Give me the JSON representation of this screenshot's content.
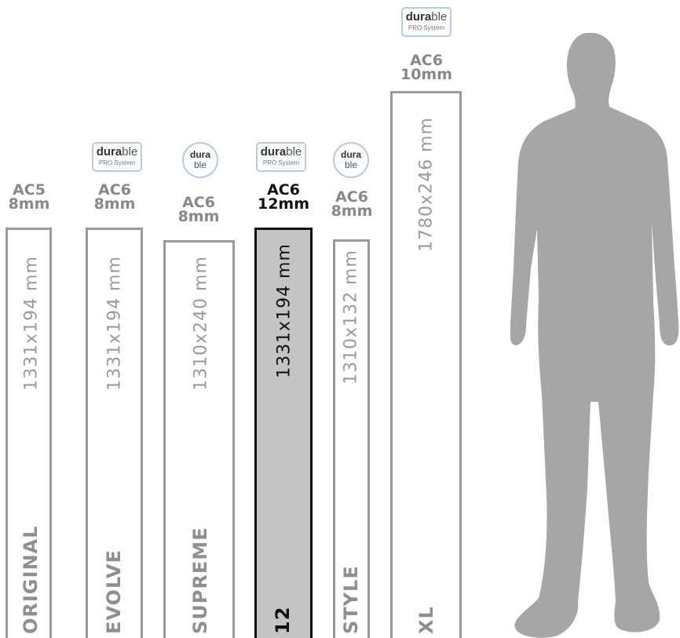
{
  "logos": {
    "rect_word_bold": "dura",
    "rect_word_light": "ble",
    "rect_sub": "PRO System",
    "round_top": "dura",
    "round_bottom": "ble"
  },
  "products": [
    {
      "name": "ORIGINAL",
      "rating": "AC5",
      "thickness": "8mm",
      "dimensions": "1331x194 mm",
      "logo": "none",
      "highlighted": false
    },
    {
      "name": "EVOLVE",
      "rating": "AC6",
      "thickness": "8mm",
      "dimensions": "1331x194 mm",
      "logo": "durable PRO System",
      "highlighted": false
    },
    {
      "name": "SUPREME",
      "rating": "AC6",
      "thickness": "8mm",
      "dimensions": "1310x240 mm",
      "logo": "durable",
      "highlighted": false
    },
    {
      "name": "12",
      "rating": "AC6",
      "thickness": "12mm",
      "dimensions": "1331x194 mm",
      "logo": "durable PRO System",
      "highlighted": true
    },
    {
      "name": "STYLE",
      "rating": "AC6",
      "thickness": "8mm",
      "dimensions": "1310x132 mm",
      "logo": "durable",
      "highlighted": false
    },
    {
      "name": "XL",
      "rating": "AC6",
      "thickness": "10mm",
      "dimensions": "1780x246 mm",
      "logo": "durable PRO System",
      "highlighted": false
    }
  ],
  "colors": {
    "plank_border": "#9a9a9a",
    "highlight_fill": "#c4c4c4",
    "highlight_border": "#111111",
    "silhouette": "#a6a6a6",
    "logo_border": "#b9cbe0"
  }
}
